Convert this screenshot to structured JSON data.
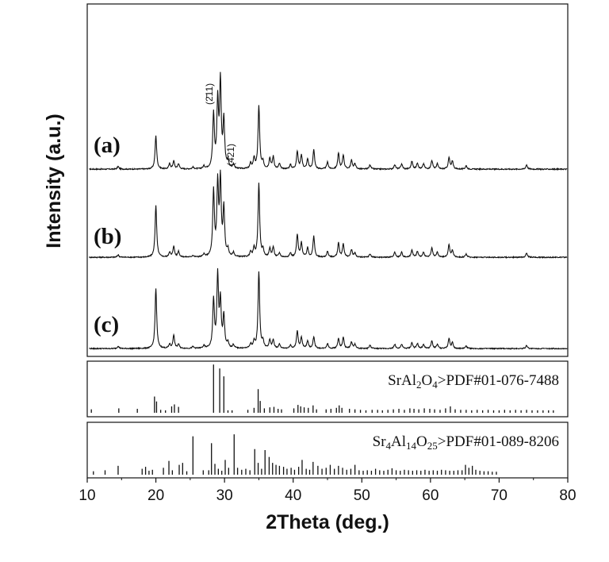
{
  "chart_data": {
    "type": "line",
    "xlabel": "2Theta (deg.)",
    "ylabel": "Intensity (a.u.)",
    "xlim": [
      10,
      80
    ],
    "xticks": [
      10,
      20,
      30,
      40,
      50,
      60,
      70,
      80
    ],
    "colors": {
      "line": "#111111",
      "axis": "#111111"
    },
    "series": [
      {
        "label": "(a)",
        "peaks": [
          [
            14.5,
            0.03
          ],
          [
            20.0,
            0.38
          ],
          [
            22.0,
            0.06
          ],
          [
            22.6,
            0.09
          ],
          [
            23.3,
            0.06
          ],
          [
            25.4,
            0.02
          ],
          [
            27.0,
            0.03
          ],
          [
            28.4,
            0.62
          ],
          [
            29.0,
            0.75
          ],
          [
            29.4,
            0.98
          ],
          [
            29.9,
            0.54
          ],
          [
            30.5,
            0.08
          ],
          [
            31.3,
            0.05
          ],
          [
            33.8,
            0.06
          ],
          [
            34.3,
            0.12
          ],
          [
            35.0,
            0.72
          ],
          [
            35.6,
            0.08
          ],
          [
            36.6,
            0.12
          ],
          [
            37.1,
            0.14
          ],
          [
            38.0,
            0.06
          ],
          [
            39.6,
            0.05
          ],
          [
            40.6,
            0.2
          ],
          [
            41.2,
            0.16
          ],
          [
            42.1,
            0.11
          ],
          [
            43.0,
            0.22
          ],
          [
            45.0,
            0.08
          ],
          [
            46.6,
            0.18
          ],
          [
            47.3,
            0.16
          ],
          [
            48.5,
            0.1
          ],
          [
            49.0,
            0.06
          ],
          [
            51.2,
            0.05
          ],
          [
            54.8,
            0.05
          ],
          [
            55.8,
            0.06
          ],
          [
            57.3,
            0.09
          ],
          [
            58.1,
            0.07
          ],
          [
            59.0,
            0.06
          ],
          [
            60.2,
            0.1
          ],
          [
            61.0,
            0.06
          ],
          [
            62.7,
            0.13
          ],
          [
            63.2,
            0.09
          ],
          [
            65.2,
            0.04
          ],
          [
            74.0,
            0.05
          ]
        ],
        "annotations": [
          {
            "text": "(2̄11)",
            "x": 28.9
          },
          {
            "text": "(421)",
            "x": 31.5
          }
        ]
      },
      {
        "label": "(b)",
        "peaks": [
          [
            14.5,
            0.03
          ],
          [
            20.0,
            0.62
          ],
          [
            22.0,
            0.06
          ],
          [
            22.6,
            0.13
          ],
          [
            23.3,
            0.07
          ],
          [
            25.4,
            0.02
          ],
          [
            27.0,
            0.03
          ],
          [
            28.4,
            0.78
          ],
          [
            29.0,
            0.85
          ],
          [
            29.4,
            0.9
          ],
          [
            29.9,
            0.57
          ],
          [
            30.5,
            0.08
          ],
          [
            31.3,
            0.05
          ],
          [
            33.8,
            0.06
          ],
          [
            34.3,
            0.1
          ],
          [
            35.0,
            0.88
          ],
          [
            35.6,
            0.08
          ],
          [
            36.6,
            0.1
          ],
          [
            37.1,
            0.12
          ],
          [
            38.0,
            0.05
          ],
          [
            39.6,
            0.05
          ],
          [
            40.6,
            0.27
          ],
          [
            41.2,
            0.17
          ],
          [
            42.1,
            0.11
          ],
          [
            43.0,
            0.25
          ],
          [
            45.0,
            0.07
          ],
          [
            46.6,
            0.17
          ],
          [
            47.3,
            0.16
          ],
          [
            48.5,
            0.09
          ],
          [
            49.0,
            0.05
          ],
          [
            51.2,
            0.04
          ],
          [
            54.8,
            0.06
          ],
          [
            55.8,
            0.06
          ],
          [
            57.3,
            0.09
          ],
          [
            58.1,
            0.07
          ],
          [
            59.0,
            0.06
          ],
          [
            60.2,
            0.11
          ],
          [
            61.0,
            0.06
          ],
          [
            62.7,
            0.15
          ],
          [
            63.2,
            0.08
          ],
          [
            65.2,
            0.04
          ],
          [
            74.0,
            0.05
          ]
        ]
      },
      {
        "label": "(c)",
        "peaks": [
          [
            14.5,
            0.03
          ],
          [
            20.0,
            0.72
          ],
          [
            22.0,
            0.05
          ],
          [
            22.6,
            0.16
          ],
          [
            23.3,
            0.05
          ],
          [
            25.4,
            0.02
          ],
          [
            27.0,
            0.03
          ],
          [
            28.4,
            0.58
          ],
          [
            29.0,
            0.86
          ],
          [
            29.4,
            0.55
          ],
          [
            29.9,
            0.38
          ],
          [
            30.5,
            0.06
          ],
          [
            31.3,
            0.04
          ],
          [
            33.8,
            0.05
          ],
          [
            34.3,
            0.08
          ],
          [
            35.0,
            0.92
          ],
          [
            35.6,
            0.08
          ],
          [
            36.6,
            0.1
          ],
          [
            37.1,
            0.1
          ],
          [
            38.0,
            0.05
          ],
          [
            39.6,
            0.04
          ],
          [
            40.6,
            0.21
          ],
          [
            41.2,
            0.13
          ],
          [
            42.1,
            0.09
          ],
          [
            43.0,
            0.14
          ],
          [
            45.0,
            0.06
          ],
          [
            46.6,
            0.12
          ],
          [
            47.3,
            0.13
          ],
          [
            48.5,
            0.08
          ],
          [
            49.0,
            0.05
          ],
          [
            51.2,
            0.04
          ],
          [
            54.8,
            0.05
          ],
          [
            55.8,
            0.05
          ],
          [
            57.3,
            0.07
          ],
          [
            58.1,
            0.06
          ],
          [
            59.0,
            0.05
          ],
          [
            60.2,
            0.09
          ],
          [
            61.0,
            0.05
          ],
          [
            62.7,
            0.12
          ],
          [
            63.2,
            0.07
          ],
          [
            65.2,
            0.03
          ],
          [
            74.0,
            0.04
          ]
        ]
      }
    ],
    "references": [
      {
        "label_parts": [
          {
            "t": "SrAl",
            "sub": false
          },
          {
            "t": "2",
            "sub": true
          },
          {
            "t": "O",
            "sub": false
          },
          {
            "t": "4",
            "sub": true
          },
          {
            "t": ">PDF#01-076-7488",
            "sub": false
          }
        ],
        "lines": [
          [
            10.6,
            0.07
          ],
          [
            14.6,
            0.09
          ],
          [
            17.3,
            0.08
          ],
          [
            19.8,
            0.33
          ],
          [
            20.1,
            0.23
          ],
          [
            20.7,
            0.06
          ],
          [
            21.4,
            0.05
          ],
          [
            22.3,
            0.13
          ],
          [
            22.7,
            0.17
          ],
          [
            23.3,
            0.12
          ],
          [
            28.4,
            0.98
          ],
          [
            29.3,
            0.9
          ],
          [
            29.9,
            0.74
          ],
          [
            30.5,
            0.05
          ],
          [
            31.1,
            0.05
          ],
          [
            33.4,
            0.06
          ],
          [
            34.3,
            0.1
          ],
          [
            34.9,
            0.48
          ],
          [
            35.2,
            0.24
          ],
          [
            35.8,
            0.09
          ],
          [
            36.6,
            0.11
          ],
          [
            37.2,
            0.12
          ],
          [
            37.8,
            0.08
          ],
          [
            38.3,
            0.07
          ],
          [
            40.1,
            0.09
          ],
          [
            40.7,
            0.16
          ],
          [
            41.1,
            0.13
          ],
          [
            41.6,
            0.11
          ],
          [
            42.2,
            0.1
          ],
          [
            42.9,
            0.15
          ],
          [
            43.4,
            0.07
          ],
          [
            44.8,
            0.07
          ],
          [
            45.5,
            0.08
          ],
          [
            46.3,
            0.1
          ],
          [
            46.7,
            0.15
          ],
          [
            47.1,
            0.1
          ],
          [
            48.2,
            0.08
          ],
          [
            49.0,
            0.07
          ],
          [
            49.8,
            0.06
          ],
          [
            50.6,
            0.05
          ],
          [
            51.5,
            0.06
          ],
          [
            52.3,
            0.06
          ],
          [
            53.0,
            0.05
          ],
          [
            53.8,
            0.06
          ],
          [
            54.6,
            0.07
          ],
          [
            55.4,
            0.08
          ],
          [
            56.2,
            0.06
          ],
          [
            57.0,
            0.09
          ],
          [
            57.6,
            0.08
          ],
          [
            58.3,
            0.07
          ],
          [
            59.1,
            0.09
          ],
          [
            59.9,
            0.08
          ],
          [
            60.6,
            0.07
          ],
          [
            61.4,
            0.06
          ],
          [
            62.2,
            0.09
          ],
          [
            62.9,
            0.13
          ],
          [
            63.6,
            0.07
          ],
          [
            64.4,
            0.06
          ],
          [
            65.2,
            0.06
          ],
          [
            66.0,
            0.05
          ],
          [
            66.8,
            0.06
          ],
          [
            67.6,
            0.05
          ],
          [
            68.4,
            0.06
          ],
          [
            69.2,
            0.05
          ],
          [
            70.0,
            0.05
          ],
          [
            70.8,
            0.06
          ],
          [
            71.6,
            0.05
          ],
          [
            72.4,
            0.06
          ],
          [
            73.2,
            0.05
          ],
          [
            74.0,
            0.06
          ],
          [
            74.8,
            0.05
          ],
          [
            75.6,
            0.05
          ],
          [
            76.4,
            0.05
          ],
          [
            77.2,
            0.05
          ],
          [
            77.9,
            0.05
          ]
        ]
      },
      {
        "label_parts": [
          {
            "t": "Sr",
            "sub": false
          },
          {
            "t": "4",
            "sub": true
          },
          {
            "t": "Al",
            "sub": false
          },
          {
            "t": "14",
            "sub": true
          },
          {
            "t": "O",
            "sub": false
          },
          {
            "t": "25",
            "sub": true
          },
          {
            "t": ">PDF#01-089-8206",
            "sub": false
          }
        ],
        "lines": [
          [
            10.9,
            0.07
          ],
          [
            12.6,
            0.09
          ],
          [
            14.5,
            0.18
          ],
          [
            18.0,
            0.12
          ],
          [
            18.5,
            0.16
          ],
          [
            19.0,
            0.08
          ],
          [
            19.5,
            0.1
          ],
          [
            21.1,
            0.14
          ],
          [
            21.9,
            0.28
          ],
          [
            22.4,
            0.09
          ],
          [
            23.4,
            0.2
          ],
          [
            23.9,
            0.24
          ],
          [
            24.5,
            0.07
          ],
          [
            25.4,
            0.78
          ],
          [
            26.9,
            0.09
          ],
          [
            27.7,
            0.09
          ],
          [
            28.1,
            0.64
          ],
          [
            28.6,
            0.22
          ],
          [
            29.1,
            0.12
          ],
          [
            29.6,
            0.08
          ],
          [
            30.1,
            0.3
          ],
          [
            30.6,
            0.14
          ],
          [
            31.4,
            0.82
          ],
          [
            31.9,
            0.14
          ],
          [
            32.5,
            0.1
          ],
          [
            33.1,
            0.12
          ],
          [
            33.7,
            0.09
          ],
          [
            34.4,
            0.52
          ],
          [
            34.9,
            0.24
          ],
          [
            35.4,
            0.12
          ],
          [
            35.9,
            0.5
          ],
          [
            36.5,
            0.36
          ],
          [
            37.0,
            0.24
          ],
          [
            37.5,
            0.2
          ],
          [
            38.0,
            0.18
          ],
          [
            38.6,
            0.16
          ],
          [
            39.1,
            0.12
          ],
          [
            39.7,
            0.14
          ],
          [
            40.2,
            0.1
          ],
          [
            40.8,
            0.16
          ],
          [
            41.3,
            0.3
          ],
          [
            41.9,
            0.12
          ],
          [
            42.4,
            0.1
          ],
          [
            42.9,
            0.26
          ],
          [
            43.6,
            0.18
          ],
          [
            44.2,
            0.12
          ],
          [
            44.8,
            0.14
          ],
          [
            45.4,
            0.2
          ],
          [
            46.0,
            0.12
          ],
          [
            46.6,
            0.18
          ],
          [
            47.2,
            0.14
          ],
          [
            47.8,
            0.1
          ],
          [
            48.4,
            0.12
          ],
          [
            49.0,
            0.2
          ],
          [
            49.6,
            0.09
          ],
          [
            50.2,
            0.08
          ],
          [
            50.8,
            0.09
          ],
          [
            51.4,
            0.08
          ],
          [
            52.0,
            0.12
          ],
          [
            52.6,
            0.09
          ],
          [
            53.2,
            0.08
          ],
          [
            53.8,
            0.1
          ],
          [
            54.4,
            0.13
          ],
          [
            55.0,
            0.09
          ],
          [
            55.6,
            0.08
          ],
          [
            56.2,
            0.1
          ],
          [
            56.8,
            0.09
          ],
          [
            57.4,
            0.08
          ],
          [
            58.0,
            0.09
          ],
          [
            58.6,
            0.08
          ],
          [
            59.2,
            0.1
          ],
          [
            59.8,
            0.08
          ],
          [
            60.4,
            0.09
          ],
          [
            61.0,
            0.08
          ],
          [
            61.6,
            0.1
          ],
          [
            62.2,
            0.09
          ],
          [
            62.8,
            0.08
          ],
          [
            63.4,
            0.08
          ],
          [
            64.0,
            0.09
          ],
          [
            64.6,
            0.09
          ],
          [
            65.1,
            0.2
          ],
          [
            65.6,
            0.14
          ],
          [
            66.1,
            0.18
          ],
          [
            66.6,
            0.1
          ],
          [
            67.2,
            0.08
          ],
          [
            67.8,
            0.07
          ],
          [
            68.4,
            0.07
          ],
          [
            69.0,
            0.06
          ],
          [
            69.6,
            0.06
          ]
        ]
      }
    ]
  }
}
